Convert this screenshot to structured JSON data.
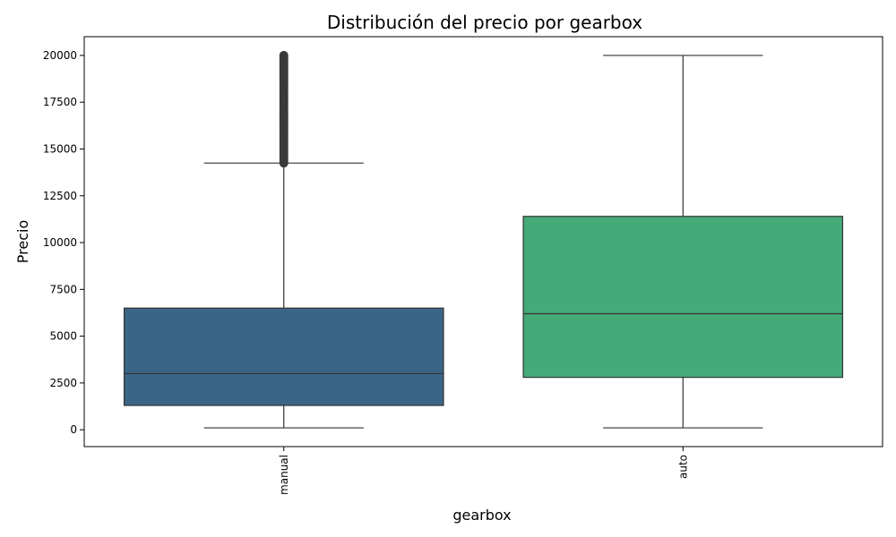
{
  "chart_data": {
    "type": "boxplot",
    "title": "Distribución del precio por gearbox",
    "xlabel": "gearbox",
    "ylabel": "Precio",
    "ylim": [
      -900,
      21000
    ],
    "yticks": [
      0,
      2500,
      5000,
      7500,
      10000,
      12500,
      15000,
      17500,
      20000
    ],
    "grid": false,
    "legend": "none",
    "categories": [
      "manual",
      "auto"
    ],
    "boxes": [
      {
        "category": "manual",
        "whisker_low": 100,
        "q1": 1300,
        "median": 3000,
        "q3": 6500,
        "whisker_high": 14250,
        "outliers_range": [
          14250,
          20000
        ],
        "color": "#3b6586"
      },
      {
        "category": "auto",
        "whisker_low": 100,
        "q1": 2800,
        "median": 6200,
        "q3": 11400,
        "whisker_high": 20000,
        "outliers_range": null,
        "color": "#45aa78"
      }
    ]
  }
}
